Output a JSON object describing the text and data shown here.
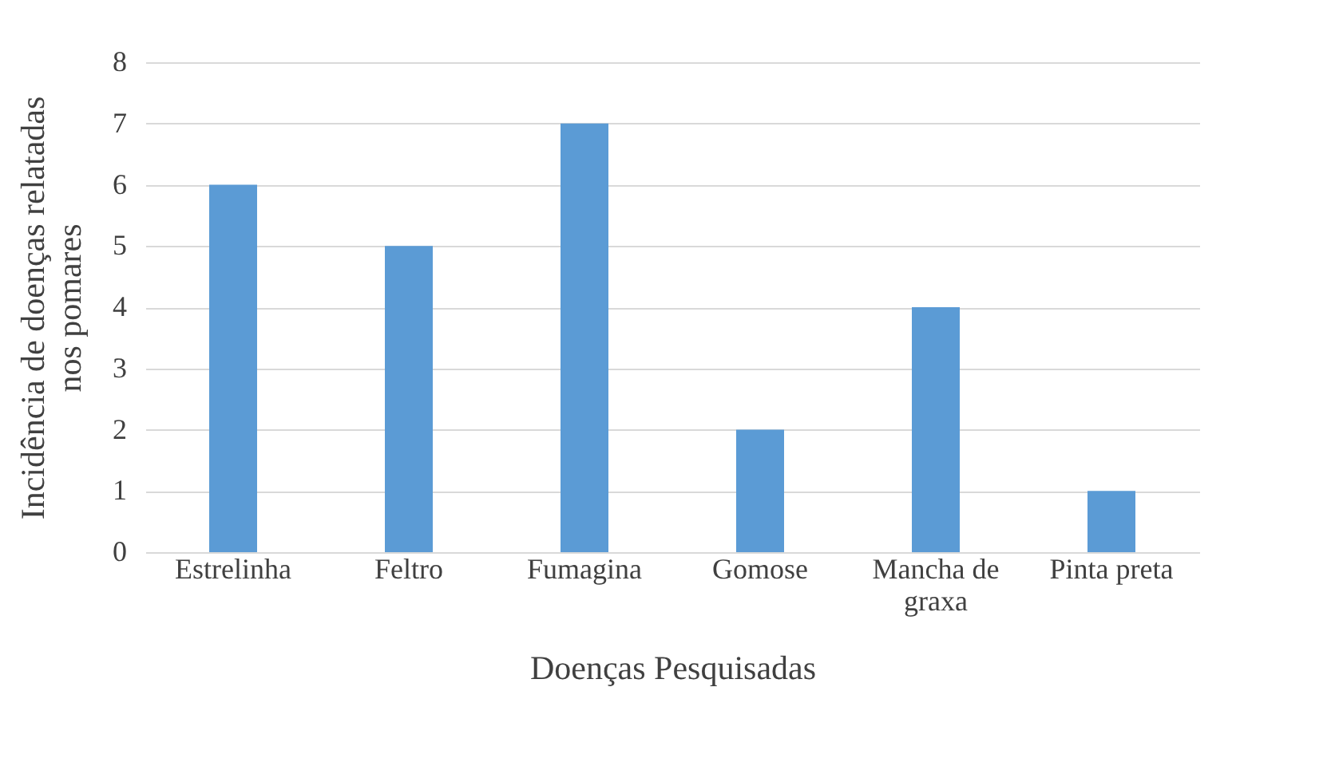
{
  "chart_data": {
    "type": "bar",
    "categories": [
      "Estrelinha",
      "Feltro",
      "Fumagina",
      "Gomose",
      "Mancha de graxa",
      "Pinta preta"
    ],
    "values": [
      6,
      5,
      7,
      2,
      4,
      1
    ],
    "color": "#5b9bd5",
    "xlabel": "Doenças Pesquisadas",
    "ylabel": "Incidência de doenças relatadas nos pomares",
    "ylim": [
      0,
      8
    ],
    "yticks": [
      0,
      1,
      2,
      3,
      4,
      5,
      6,
      7,
      8
    ],
    "grid": "y"
  }
}
